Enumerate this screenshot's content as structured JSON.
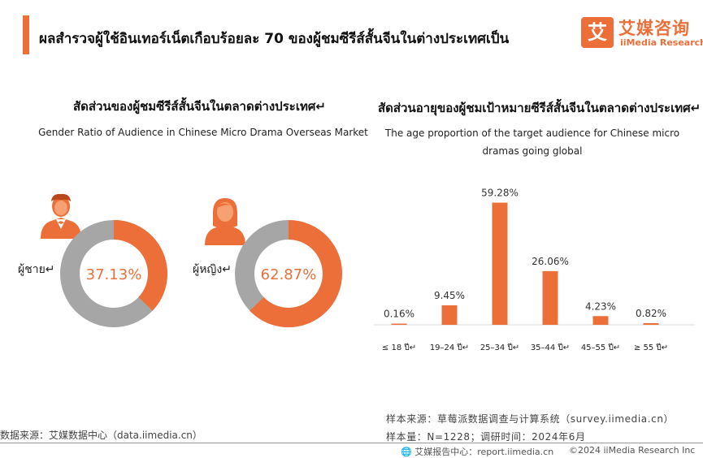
{
  "header": {
    "title": "ผลสำรวจผู้ใช้อินเทอร์เน็ตเกือบร้อยละ 70 ของผู้ชมซีรีส์สั้นจีนในต่างประเทศเป็น",
    "logo_mark": "艾",
    "logo_cn": "艾媒咨询",
    "logo_en": "iiMedia Research"
  },
  "left_panel": {
    "title": "สัดส่วนของผู้ชมซีรีส์สั้นจีนในตลาดต่างประเทศ↵",
    "subtitle": "Gender Ratio of Audience in Chinese Micro Drama Overseas Market"
  },
  "right_panel": {
    "title": "สัดส่วนอายุของผู้ชมเป้าหมายซีรีส์สั้นจีนในตลาดต่างประเทศ↵",
    "subtitle_line1": "The age proportion of the target audience for Chinese micro",
    "subtitle_line2": "dramas going global"
  },
  "colors": {
    "accent": "#ec6f3a",
    "gray": "#a6a6a6"
  },
  "icons": {
    "male": "male-avatar-icon",
    "female": "female-avatar-icon"
  },
  "chart_data": [
    {
      "type": "pie",
      "variant": "donut",
      "categories": [
        "ผู้ชาย↵",
        "ผู้หญิง↵"
      ],
      "values": [
        37.13,
        62.87
      ],
      "labels": [
        "37.13%",
        "62.87%"
      ],
      "colors": [
        "#ec6f3a",
        "#a6a6a6"
      ]
    },
    {
      "type": "bar",
      "categories": [
        "≤ 18 ปี↵",
        "19–24 ปี↵",
        "25–34 ปี↵",
        "35–44 ปี↵",
        "45–55 ปี↵",
        "≥ 55 ปี↵"
      ],
      "values": [
        0.16,
        9.45,
        59.28,
        26.06,
        4.23,
        0.82
      ],
      "labels": [
        "0.16%",
        "9.45%",
        "59.28%",
        "26.06%",
        "4.23%",
        "0.82%"
      ],
      "ylim": [
        0,
        65
      ],
      "color": "#ec6f3a",
      "grid": false
    }
  ],
  "footer": {
    "source_left": "数据来源：艾媒数据中心（data.iimedia.cn）",
    "source_right_1": "样本来源：草莓派数据调查与计算系统（survey.iimedia.cn）",
    "source_right_2": "样本量：N=1228；调研时间：2024年6月",
    "report": "艾媒报告中心：report.iimedia.cn",
    "copyright": "©2024  iiMedia Research  Inc"
  }
}
